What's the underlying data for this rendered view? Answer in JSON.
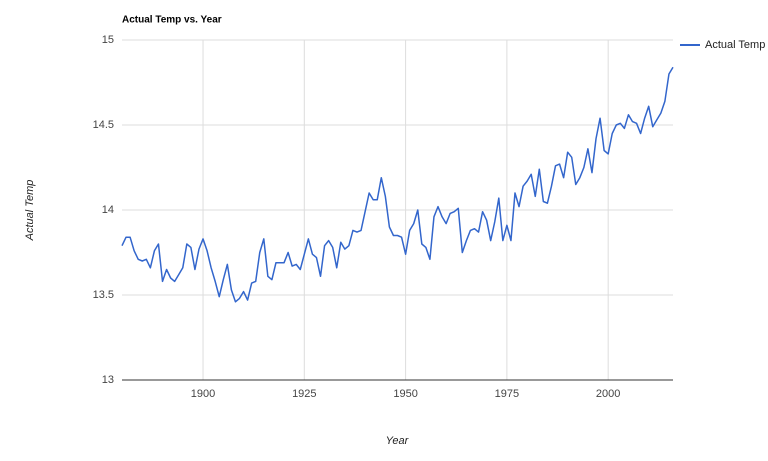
{
  "chart_data": {
    "type": "line",
    "title": "Actual Temp vs. Year",
    "x_label": "Year",
    "y_label": "Actual Temp",
    "x": [
      1880,
      1881,
      1882,
      1883,
      1884,
      1885,
      1886,
      1887,
      1888,
      1889,
      1890,
      1891,
      1892,
      1893,
      1894,
      1895,
      1896,
      1897,
      1898,
      1899,
      1900,
      1901,
      1902,
      1903,
      1904,
      1905,
      1906,
      1907,
      1908,
      1909,
      1910,
      1911,
      1912,
      1913,
      1914,
      1915,
      1916,
      1917,
      1918,
      1919,
      1920,
      1921,
      1922,
      1923,
      1924,
      1925,
      1926,
      1927,
      1928,
      1929,
      1930,
      1931,
      1932,
      1933,
      1934,
      1935,
      1936,
      1937,
      1938,
      1939,
      1940,
      1941,
      1942,
      1943,
      1944,
      1945,
      1946,
      1947,
      1948,
      1949,
      1950,
      1951,
      1952,
      1953,
      1954,
      1955,
      1956,
      1957,
      1958,
      1959,
      1960,
      1961,
      1962,
      1963,
      1964,
      1965,
      1966,
      1967,
      1968,
      1969,
      1970,
      1971,
      1972,
      1973,
      1974,
      1975,
      1976,
      1977,
      1978,
      1979,
      1980,
      1981,
      1982,
      1983,
      1984,
      1985,
      1986,
      1987,
      1988,
      1989,
      1990,
      1991,
      1992,
      1993,
      1994,
      1995,
      1996,
      1997,
      1998,
      1999,
      2000,
      2001,
      2002,
      2003,
      2004,
      2005,
      2006,
      2007,
      2008,
      2009,
      2010,
      2011,
      2012,
      2013,
      2014,
      2015,
      2016
    ],
    "series": [
      {
        "name": "Actual Temp",
        "color": "#3366cc",
        "values": [
          13.79,
          13.84,
          13.84,
          13.76,
          13.71,
          13.7,
          13.71,
          13.66,
          13.76,
          13.8,
          13.58,
          13.65,
          13.6,
          13.58,
          13.62,
          13.66,
          13.8,
          13.78,
          13.65,
          13.77,
          13.83,
          13.76,
          13.66,
          13.58,
          13.49,
          13.59,
          13.68,
          13.53,
          13.46,
          13.48,
          13.52,
          13.47,
          13.57,
          13.58,
          13.75,
          13.83,
          13.61,
          13.59,
          13.69,
          13.69,
          13.69,
          13.75,
          13.67,
          13.68,
          13.65,
          13.74,
          13.83,
          13.74,
          13.72,
          13.61,
          13.79,
          13.82,
          13.78,
          13.66,
          13.81,
          13.77,
          13.79,
          13.88,
          13.87,
          13.88,
          13.99,
          14.1,
          14.06,
          14.06,
          14.19,
          14.08,
          13.9,
          13.85,
          13.85,
          13.84,
          13.74,
          13.88,
          13.92,
          14.0,
          13.8,
          13.78,
          13.71,
          13.96,
          14.02,
          13.96,
          13.92,
          13.98,
          13.99,
          14.01,
          13.75,
          13.82,
          13.88,
          13.89,
          13.87,
          13.99,
          13.94,
          13.82,
          13.93,
          14.07,
          13.82,
          13.91,
          13.82,
          14.1,
          14.02,
          14.14,
          14.17,
          14.21,
          14.08,
          14.24,
          14.05,
          14.04,
          14.14,
          14.26,
          14.27,
          14.19,
          14.34,
          14.31,
          14.15,
          14.19,
          14.25,
          14.36,
          14.22,
          14.42,
          14.54,
          14.35,
          14.33,
          14.45,
          14.5,
          14.51,
          14.48,
          14.56,
          14.52,
          14.51,
          14.45,
          14.54,
          14.61,
          14.49,
          14.53,
          14.57,
          14.64,
          14.8,
          14.84
        ]
      }
    ],
    "xlim": [
      1880,
      2016
    ],
    "xticks": [
      1900,
      1925,
      1950,
      1975,
      2000
    ],
    "ylim": [
      13,
      15
    ],
    "yticks": [
      13,
      13.5,
      14,
      14.5,
      15
    ],
    "grid": true,
    "legend": "right"
  }
}
